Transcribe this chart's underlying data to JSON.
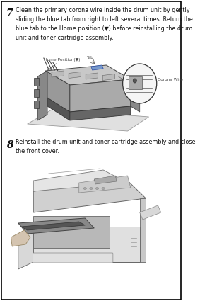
{
  "bg_color": "#ffffff",
  "border_color": "#000000",
  "step7_number": "7",
  "step7_text": "Clean the primary corona wire inside the drum unit by gently\nsliding the blue tab from right to left several times. Return the\nblue tab to the Home position (▼) before reinstalling the drum\nunit and toner cartridge assembly.",
  "label_home": "Home Position(▼)",
  "label_tab": "Tab",
  "label_corona": "Corona Wire",
  "step8_number": "8",
  "step8_text": "Reinstall the drum unit and toner cartridge assembly and close\nthe front cover.",
  "text_color": "#111111",
  "label_color": "#444444",
  "line_color": "#555555",
  "drum_dark": "#444444",
  "drum_mid": "#888888",
  "drum_light": "#cccccc",
  "paper_color": "#e8e8e8",
  "printer_body": "#d8d8d8",
  "printer_dark": "#aaaaaa"
}
